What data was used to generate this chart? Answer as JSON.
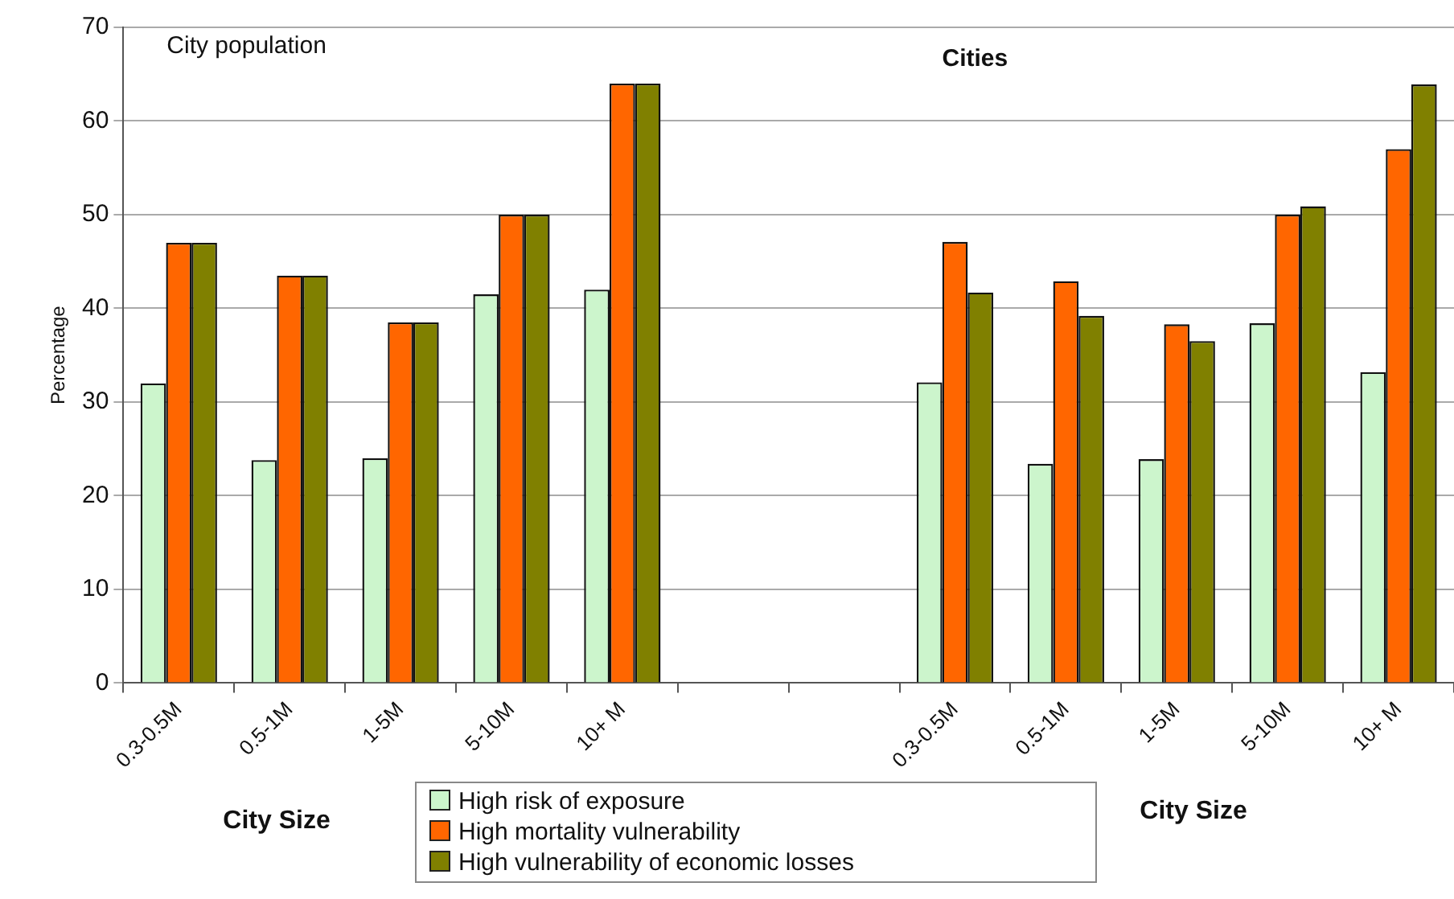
{
  "chart_data": {
    "type": "bar",
    "xlabel": "City Size",
    "ylabel": "Percentage",
    "categories": [
      "0.3-0.5M",
      "0.5-1M",
      "1-5M",
      "5-10M",
      "10+ M",
      null,
      null,
      "0.3-0.5M",
      "0.5-1M",
      "1-5M",
      "5-10M",
      "10+ M"
    ],
    "series": [
      {
        "name": "High risk of exposure",
        "color": "#ccf5cc",
        "values": [
          32,
          23.8,
          24,
          41.5,
          42,
          null,
          null,
          32.1,
          23.4,
          23.9,
          38.4,
          33.2
        ]
      },
      {
        "name": "High mortality vulnerability",
        "color": "#ff6600",
        "values": [
          47,
          43.5,
          38.5,
          50,
          64,
          null,
          null,
          47.1,
          42.9,
          38.3,
          50,
          57
        ]
      },
      {
        "name": "High vulnerability of economic losses",
        "color": "#808000",
        "values": [
          47,
          43.5,
          38.5,
          50,
          64,
          null,
          null,
          41.7,
          39.2,
          36.5,
          50.9,
          63.9
        ]
      }
    ],
    "ylim": [
      0,
      70
    ],
    "yticks": [
      0,
      10,
      20,
      30,
      40,
      50,
      60,
      70
    ],
    "grid": "y",
    "legend": "bottom",
    "annotations": [
      "City population",
      "Cities",
      "City Size"
    ]
  }
}
